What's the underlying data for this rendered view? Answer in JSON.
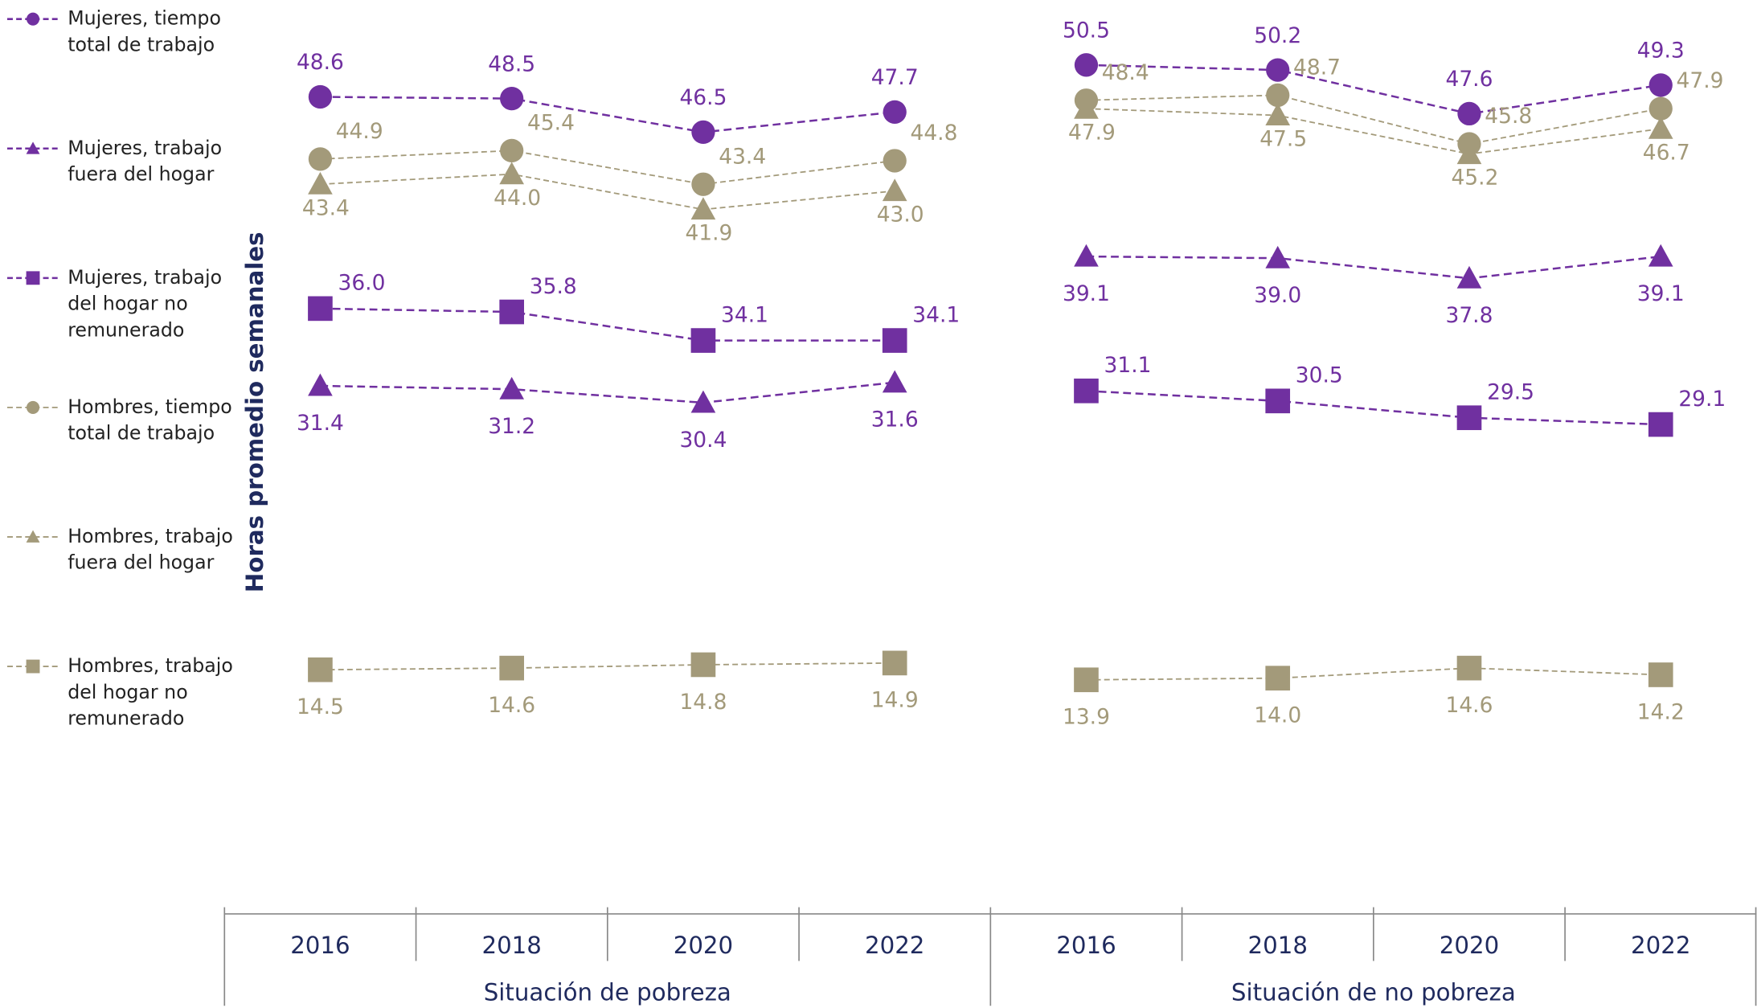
{
  "chart_data": {
    "type": "line",
    "y_label": "Horas promedio semanales",
    "groups": [
      {
        "name": "Situación de pobreza",
        "categories": [
          "2016",
          "2018",
          "2020",
          "2022"
        ]
      },
      {
        "name": "Situación de no pobreza",
        "categories": [
          "2016",
          "2018",
          "2020",
          "2022"
        ]
      }
    ],
    "series": [
      {
        "name": "Mujeres, tiempo total de trabajo",
        "color": "#7030a0",
        "marker": "circle",
        "values": [
          [
            48.6,
            48.5,
            46.5,
            47.7
          ],
          [
            50.5,
            50.2,
            47.6,
            49.3
          ]
        ],
        "value_labels": [
          [
            "48.6",
            "48.5",
            "46.5",
            "47.7"
          ],
          [
            "50.5",
            "50.2",
            "47.6",
            "49.3"
          ]
        ]
      },
      {
        "name": "Mujeres, trabajo fuera del hogar",
        "color": "#7030a0",
        "marker": "triangle",
        "values": [
          [
            31.4,
            31.2,
            30.4,
            31.6
          ],
          [
            39.1,
            39.0,
            37.8,
            39.1
          ]
        ],
        "value_labels": [
          [
            "31.4",
            "31.2",
            "30.4",
            "31.6"
          ],
          [
            "39.1",
            "39.0",
            "37.8",
            "39.1"
          ]
        ]
      },
      {
        "name": "Mujeres, trabajo del hogar no remunerado",
        "color": "#7030a0",
        "marker": "square",
        "values": [
          [
            36.0,
            35.8,
            34.1,
            34.1
          ],
          [
            31.1,
            30.5,
            29.5,
            29.1
          ]
        ],
        "value_labels": [
          [
            "36.0",
            "35.8",
            "34.1",
            "34.1"
          ],
          [
            "31.1",
            "30.5",
            "29.5",
            "29.1"
          ]
        ]
      },
      {
        "name": "Hombres, tiempo total de trabajo",
        "color": "#a39a7a",
        "marker": "circle",
        "values": [
          [
            44.9,
            45.4,
            43.4,
            44.8
          ],
          [
            48.4,
            48.7,
            45.8,
            47.9
          ]
        ],
        "value_labels": [
          [
            "44.9",
            "45.4",
            "43.4",
            "44.8"
          ],
          [
            "48.4",
            "48.7",
            "45.8",
            "47.9"
          ]
        ]
      },
      {
        "name": "Hombres, trabajo fuera del hogar",
        "color": "#a39a7a",
        "marker": "triangle",
        "values": [
          [
            43.4,
            44.0,
            41.9,
            43.0
          ],
          [
            47.9,
            47.5,
            45.2,
            46.7
          ]
        ],
        "value_labels": [
          [
            "43.4",
            "44.0",
            "41.9",
            "43.0"
          ],
          [
            "47.9",
            "47.5",
            "45.2",
            "46.7"
          ]
        ]
      },
      {
        "name": "Hombres, trabajo del hogar no remunerado",
        "color": "#a39a7a",
        "marker": "square",
        "values": [
          [
            14.5,
            14.6,
            14.8,
            14.9
          ],
          [
            13.9,
            14.0,
            14.6,
            14.2
          ]
        ],
        "value_labels": [
          [
            "14.5",
            "14.6",
            "14.8",
            "14.9"
          ],
          [
            "13.9",
            "14.0",
            "14.6",
            "14.2"
          ]
        ]
      }
    ]
  }
}
